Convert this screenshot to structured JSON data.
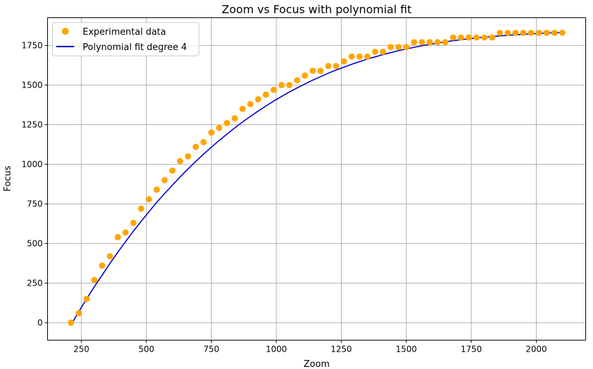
{
  "chart_data": {
    "type": "scatter",
    "title": "Zoom vs Focus with polynomial fit",
    "xlabel": "Zoom",
    "ylabel": "Focus",
    "xlim": [
      120,
      2190
    ],
    "ylim": [
      -110,
      1925
    ],
    "xticks": [
      250,
      500,
      750,
      1000,
      1250,
      1500,
      1750,
      2000
    ],
    "yticks": [
      0,
      250,
      500,
      750,
      1000,
      1250,
      1500,
      1750
    ],
    "grid": true,
    "legend_position": "top-left",
    "colors": {
      "scatter": "#ffa500",
      "fit": "#0000cd",
      "grid": "#b0b0b0"
    },
    "series": [
      {
        "name": "Experimental data",
        "kind": "scatter",
        "points": [
          [
            210,
            0
          ],
          [
            240,
            60
          ],
          [
            270,
            150
          ],
          [
            300,
            270
          ],
          [
            330,
            360
          ],
          [
            360,
            420
          ],
          [
            390,
            540
          ],
          [
            420,
            570
          ],
          [
            450,
            630
          ],
          [
            480,
            720
          ],
          [
            510,
            780
          ],
          [
            540,
            840
          ],
          [
            570,
            900
          ],
          [
            600,
            960
          ],
          [
            630,
            1020
          ],
          [
            660,
            1050
          ],
          [
            690,
            1110
          ],
          [
            720,
            1140
          ],
          [
            750,
            1200
          ],
          [
            780,
            1230
          ],
          [
            810,
            1260
          ],
          [
            840,
            1290
          ],
          [
            870,
            1350
          ],
          [
            900,
            1380
          ],
          [
            930,
            1410
          ],
          [
            960,
            1440
          ],
          [
            990,
            1470
          ],
          [
            1020,
            1500
          ],
          [
            1050,
            1500
          ],
          [
            1080,
            1530
          ],
          [
            1110,
            1560
          ],
          [
            1140,
            1590
          ],
          [
            1170,
            1590
          ],
          [
            1200,
            1620
          ],
          [
            1230,
            1620
          ],
          [
            1260,
            1650
          ],
          [
            1290,
            1680
          ],
          [
            1320,
            1680
          ],
          [
            1350,
            1680
          ],
          [
            1380,
            1710
          ],
          [
            1410,
            1710
          ],
          [
            1440,
            1740
          ],
          [
            1470,
            1740
          ],
          [
            1500,
            1740
          ],
          [
            1530,
            1770
          ],
          [
            1560,
            1770
          ],
          [
            1590,
            1770
          ],
          [
            1620,
            1770
          ],
          [
            1650,
            1770
          ],
          [
            1680,
            1800
          ],
          [
            1710,
            1800
          ],
          [
            1740,
            1800
          ],
          [
            1770,
            1800
          ],
          [
            1800,
            1800
          ],
          [
            1830,
            1800
          ],
          [
            1860,
            1830
          ],
          [
            1890,
            1830
          ],
          [
            1920,
            1830
          ],
          [
            1950,
            1830
          ],
          [
            1980,
            1830
          ],
          [
            2010,
            1830
          ],
          [
            2040,
            1830
          ],
          [
            2070,
            1830
          ],
          [
            2100,
            1830
          ]
        ]
      },
      {
        "name": "Polynomial fit degree 4",
        "kind": "line",
        "points": [
          [
            210,
            -15
          ],
          [
            240,
            70
          ],
          [
            270,
            150
          ],
          [
            300,
            228
          ],
          [
            330,
            300
          ],
          [
            360,
            375
          ],
          [
            390,
            445
          ],
          [
            420,
            512
          ],
          [
            450,
            578
          ],
          [
            480,
            640
          ],
          [
            510,
            700
          ],
          [
            540,
            760
          ],
          [
            570,
            815
          ],
          [
            600,
            868
          ],
          [
            630,
            920
          ],
          [
            660,
            970
          ],
          [
            690,
            1018
          ],
          [
            720,
            1064
          ],
          [
            750,
            1108
          ],
          [
            780,
            1150
          ],
          [
            810,
            1190
          ],
          [
            840,
            1230
          ],
          [
            870,
            1267
          ],
          [
            900,
            1302
          ],
          [
            930,
            1336
          ],
          [
            960,
            1368
          ],
          [
            990,
            1399
          ],
          [
            1020,
            1428
          ],
          [
            1050,
            1456
          ],
          [
            1080,
            1482
          ],
          [
            1110,
            1507
          ],
          [
            1140,
            1531
          ],
          [
            1170,
            1553
          ],
          [
            1200,
            1575
          ],
          [
            1230,
            1595
          ],
          [
            1260,
            1613
          ],
          [
            1290,
            1631
          ],
          [
            1320,
            1648
          ],
          [
            1350,
            1664
          ],
          [
            1380,
            1678
          ],
          [
            1410,
            1692
          ],
          [
            1440,
            1705
          ],
          [
            1470,
            1717
          ],
          [
            1500,
            1728
          ],
          [
            1530,
            1738
          ],
          [
            1560,
            1748
          ],
          [
            1590,
            1757
          ],
          [
            1620,
            1765
          ],
          [
            1650,
            1773
          ],
          [
            1680,
            1780
          ],
          [
            1710,
            1786
          ],
          [
            1740,
            1792
          ],
          [
            1770,
            1797
          ],
          [
            1800,
            1802
          ],
          [
            1830,
            1806
          ],
          [
            1860,
            1810
          ],
          [
            1890,
            1814
          ],
          [
            1920,
            1817
          ],
          [
            1950,
            1820
          ],
          [
            1980,
            1823
          ],
          [
            2010,
            1826
          ],
          [
            2040,
            1828
          ],
          [
            2070,
            1830
          ],
          [
            2100,
            1832
          ]
        ]
      }
    ]
  }
}
